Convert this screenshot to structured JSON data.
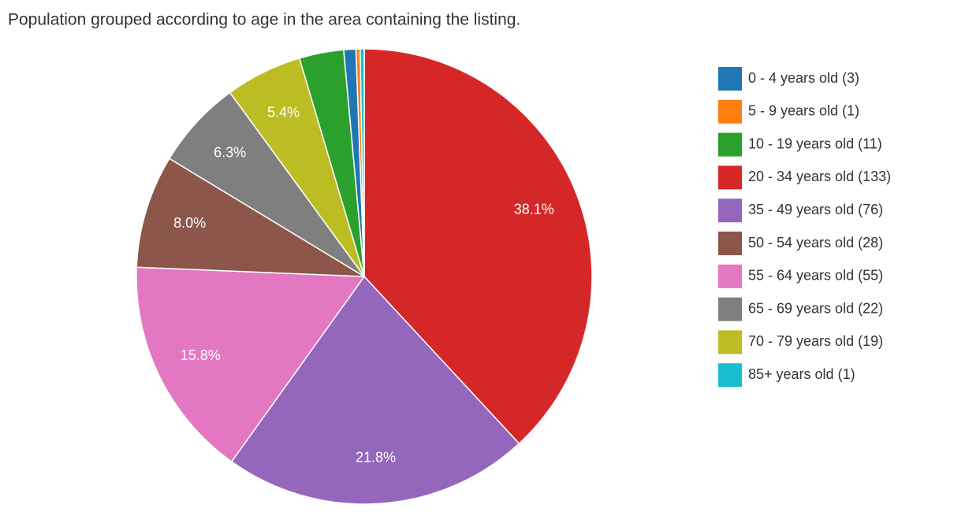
{
  "chart_data": {
    "type": "pie",
    "title": "Population grouped according to age in the area containing the listing.",
    "categories": [
      "0 - 4 years old (3)",
      "5 - 9 years old (1)",
      "10 - 19 years old (11)",
      "20 - 34 years old (133)",
      "35 - 49 years old (76)",
      "50 - 54 years old (28)",
      "55 - 64 years old (55)",
      "65 - 69 years old (22)",
      "70 - 79 years old (19)",
      "85+ years old (1)"
    ],
    "values": [
      0.86,
      0.29,
      3.15,
      38.11,
      21.78,
      8.02,
      15.76,
      6.3,
      5.44,
      0.29
    ],
    "value_labels": [
      null,
      null,
      null,
      "38.1%",
      "21.8%",
      "8.0%",
      "15.8%",
      "6.3%",
      "5.4%",
      null
    ],
    "colors": [
      "#1f77b4",
      "#ff7f0e",
      "#2ca02c",
      "#d62728",
      "#9467bd",
      "#8c564b",
      "#e377c2",
      "#7f7f7f",
      "#bcbd22",
      "#17becf"
    ],
    "sort": "descending",
    "legend": "right"
  }
}
